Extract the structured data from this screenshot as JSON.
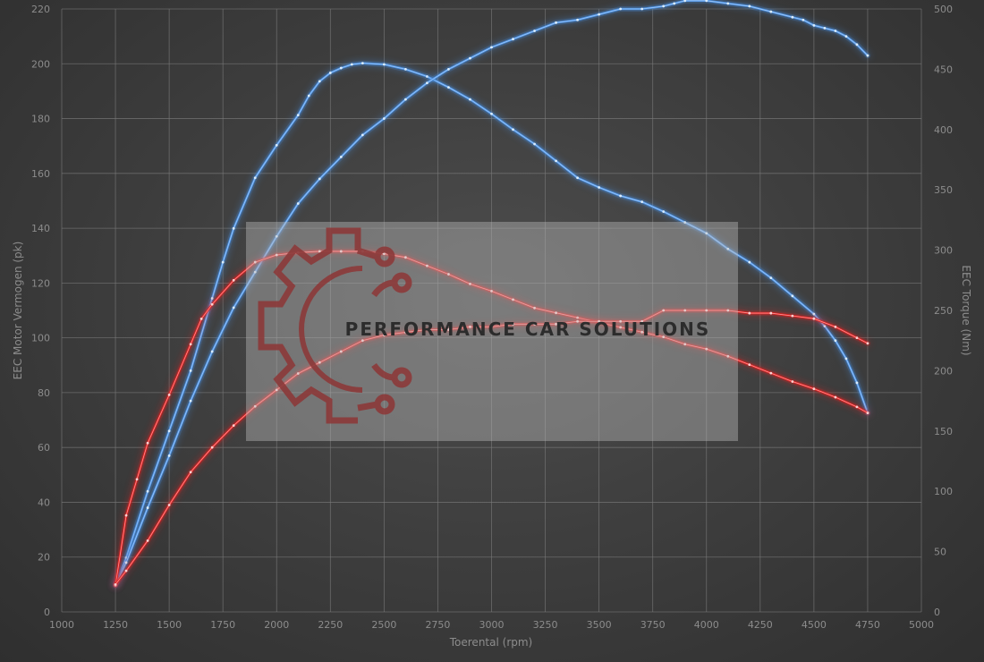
{
  "chart_data": {
    "type": "line",
    "xlabel": "Toerental (rpm)",
    "ylabel_left": "EEC Motor Vermogen (pk)",
    "ylabel_right": "EEC Torque (Nm)",
    "xlim": [
      1000,
      5000
    ],
    "ylim_left": [
      0,
      220
    ],
    "ylim_right": [
      0,
      500
    ],
    "x_ticks": [
      1000,
      1250,
      1500,
      1750,
      2000,
      2250,
      2500,
      2750,
      3000,
      3250,
      3500,
      3750,
      4000,
      4250,
      4500,
      4750,
      5000
    ],
    "y_left_ticks": [
      0,
      20,
      40,
      60,
      80,
      100,
      120,
      140,
      160,
      180,
      200,
      220
    ],
    "y_right_ticks": [
      0,
      50,
      100,
      150,
      200,
      250,
      300,
      350,
      400,
      450,
      500
    ],
    "grid": true,
    "series": [
      {
        "color": "#4a90e2",
        "axis": "right",
        "x": [
          1250,
          1300,
          1400,
          1500,
          1600,
          1700,
          1750,
          1800,
          1900,
          2000,
          2100,
          2150,
          2200,
          2250,
          2300,
          2350,
          2400,
          2500,
          2600,
          2700,
          2800,
          2900,
          3000,
          3100,
          3200,
          3300,
          3400,
          3500,
          3600,
          3700,
          3800,
          3900,
          4000,
          4100,
          4200,
          4300,
          4400,
          4500,
          4550,
          4600,
          4650,
          4700,
          4750
        ],
        "y": [
          22,
          45,
          100,
          150,
          200,
          260,
          290,
          318,
          360,
          387,
          412,
          428,
          440,
          447,
          451,
          454,
          455,
          454,
          450,
          444,
          435,
          425,
          413,
          400,
          388,
          374,
          360,
          352,
          345,
          340,
          332,
          323,
          314,
          301,
          290,
          277,
          262,
          247,
          237,
          225,
          210,
          190,
          165
        ]
      },
      {
        "color": "#4a90e2",
        "axis": "left",
        "x": [
          1250,
          1300,
          1400,
          1500,
          1600,
          1700,
          1800,
          1900,
          2000,
          2100,
          2200,
          2300,
          2400,
          2500,
          2600,
          2700,
          2800,
          2900,
          3000,
          3100,
          3200,
          3300,
          3400,
          3500,
          3600,
          3700,
          3800,
          3850,
          3900,
          4000,
          4100,
          4200,
          4300,
          4400,
          4450,
          4500,
          4550,
          4600,
          4650,
          4700,
          4750
        ],
        "y": [
          10,
          18,
          38,
          57,
          77,
          95,
          111,
          124,
          137,
          149,
          158,
          166,
          174,
          180,
          187,
          193,
          198,
          202,
          206,
          209,
          212,
          215,
          216,
          218,
          220,
          220,
          221,
          222,
          223,
          223,
          222,
          221,
          219,
          217,
          216,
          214,
          213,
          212,
          210,
          207,
          203
        ]
      },
      {
        "color": "#e02020",
        "axis": "right",
        "x": [
          1250,
          1300,
          1350,
          1400,
          1500,
          1600,
          1650,
          1700,
          1800,
          1900,
          2000,
          2100,
          2200,
          2300,
          2400,
          2500,
          2600,
          2700,
          2800,
          2900,
          3000,
          3100,
          3200,
          3300,
          3400,
          3500,
          3600,
          3700,
          3800,
          3900,
          4000,
          4100,
          4200,
          4300,
          4400,
          4500,
          4600,
          4700,
          4750
        ],
        "y": [
          22,
          80,
          110,
          140,
          180,
          222,
          243,
          255,
          275,
          290,
          296,
          298,
          299,
          299,
          299,
          297,
          294,
          287,
          280,
          272,
          266,
          259,
          252,
          248,
          244,
          240,
          236,
          232,
          228,
          222,
          218,
          212,
          205,
          198,
          191,
          185,
          178,
          170,
          165
        ]
      },
      {
        "color": "#e02020",
        "axis": "left",
        "x": [
          1250,
          1300,
          1400,
          1500,
          1600,
          1700,
          1800,
          1900,
          2000,
          2100,
          2200,
          2300,
          2400,
          2500,
          2600,
          2700,
          2800,
          2900,
          3000,
          3100,
          3200,
          3300,
          3400,
          3500,
          3600,
          3700,
          3800,
          3900,
          4000,
          4100,
          4200,
          4300,
          4400,
          4500,
          4600,
          4700,
          4750
        ],
        "y": [
          10,
          15,
          26,
          39,
          51,
          60,
          68,
          75,
          81,
          87,
          91,
          95,
          99,
          101,
          102,
          103,
          103,
          104,
          104,
          105,
          105,
          105,
          106,
          106,
          106,
          106,
          110,
          110,
          110,
          110,
          109,
          109,
          108,
          107,
          104,
          100,
          98
        ]
      }
    ]
  },
  "watermark": {
    "text": "PERFORMANCE CAR SOLUTIONS"
  },
  "colors": {
    "stock": "#4a90e2",
    "tuned": "#e02020",
    "watermark_logo": "#8c3a3a"
  }
}
